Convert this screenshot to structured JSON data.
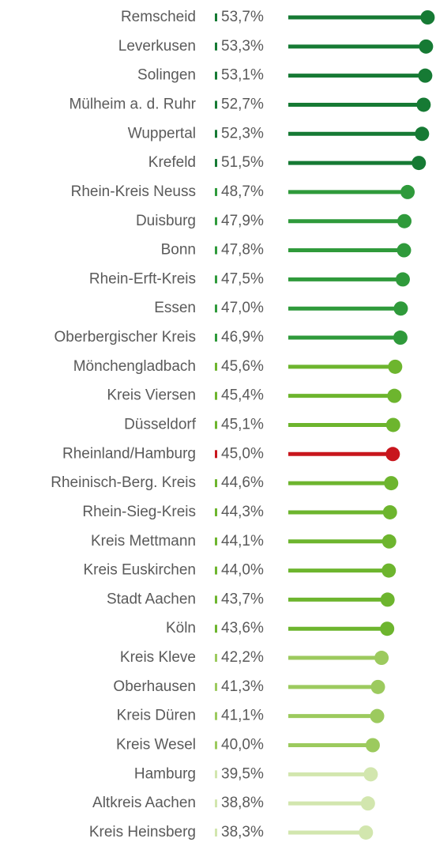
{
  "chart_data": {
    "type": "lollipop",
    "categories": [
      "Remscheid",
      "Leverkusen",
      "Solingen",
      "Mülheim a. d. Ruhr",
      "Wuppertal",
      "Krefeld",
      "Rhein-Kreis Neuss",
      "Duisburg",
      "Bonn",
      "Rhein-Erft-Kreis",
      "Essen",
      "Oberbergischer Kreis",
      "Mönchengladbach",
      "Kreis Viersen",
      "Düsseldorf",
      "Rheinland/Hamburg",
      "Rheinisch-Berg. Kreis",
      "Rhein-Sieg-Kreis",
      "Kreis Mettmann",
      "Kreis Euskirchen",
      "Stadt Aachen",
      "Köln",
      "Kreis Kleve",
      "Oberhausen",
      "Kreis Düren",
      "Kreis Wesel",
      "Hamburg",
      "Altkreis Aachen",
      "Kreis Heinsberg"
    ],
    "values": [
      53.7,
      53.3,
      53.1,
      52.7,
      52.3,
      51.5,
      48.7,
      47.9,
      47.8,
      47.5,
      47.0,
      46.9,
      45.6,
      45.4,
      45.1,
      45.0,
      44.6,
      44.3,
      44.1,
      44.0,
      43.7,
      43.6,
      42.2,
      41.3,
      41.1,
      40.0,
      39.5,
      38.8,
      38.3
    ],
    "value_labels": [
      "53,7%",
      "53,3%",
      "53,1%",
      "52,7%",
      "52,3%",
      "51,5%",
      "48,7%",
      "47,9%",
      "47,8%",
      "47,5%",
      "47,0%",
      "46,9%",
      "45,6%",
      "45,4%",
      "45,1%",
      "45,0%",
      "44,6%",
      "44,3%",
      "44,1%",
      "44,0%",
      "43,7%",
      "43,6%",
      "42,2%",
      "41,3%",
      "41,1%",
      "40,0%",
      "39,5%",
      "38,8%",
      "38,3%"
    ],
    "colors": [
      "#167a34",
      "#167a34",
      "#167a34",
      "#167a34",
      "#167a34",
      "#167a34",
      "#2f9a3b",
      "#2f9a3b",
      "#2f9a3b",
      "#2f9a3b",
      "#2f9a3b",
      "#2f9a3b",
      "#6db52e",
      "#6db52e",
      "#6db52e",
      "#c8161d",
      "#6db52e",
      "#6db52e",
      "#6db52e",
      "#6db52e",
      "#6db52e",
      "#6db52e",
      "#9cca5e",
      "#9cca5e",
      "#9cca5e",
      "#9cca5e",
      "#d2e6ae",
      "#d2e6ae",
      "#d2e6ae"
    ],
    "xlim": [
      0,
      55
    ]
  }
}
